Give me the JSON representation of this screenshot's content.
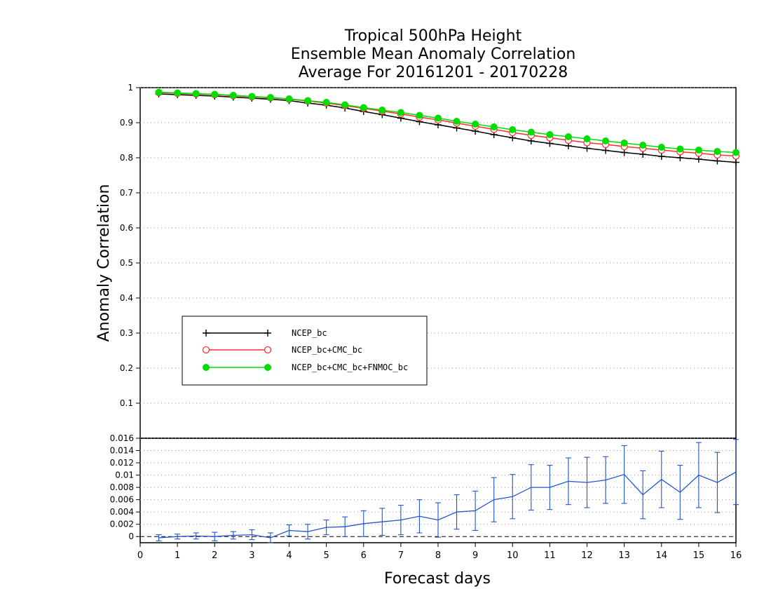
{
  "chart_data": [
    {
      "type": "line",
      "title": [
        "Tropical 500hPa Height",
        "Ensemble Mean Anomaly Correlation",
        "Average For 20161201 - 20170228"
      ],
      "xlabel": "Forecast days",
      "ylabel": "Anomaly Correlation",
      "xlim": [
        0,
        16
      ],
      "ylim": [
        0,
        1
      ],
      "yticks": [
        "0.1",
        "0.2",
        "0.3",
        "0.4",
        "0.5",
        "0.6",
        "0.7",
        "0.8",
        "0.9",
        "1"
      ],
      "grid": "dotted horizontal",
      "legend_position": "lower-left",
      "x": [
        0.5,
        1,
        1.5,
        2,
        2.5,
        3,
        3.5,
        4,
        4.5,
        5,
        5.5,
        6,
        6.5,
        7,
        7.5,
        8,
        8.5,
        9,
        9.5,
        10,
        10.5,
        11,
        11.5,
        12,
        12.5,
        13,
        13.5,
        14,
        14.5,
        15,
        15.5,
        16
      ],
      "series": [
        {
          "name": "NCEP_bc",
          "color": "#000000",
          "marker": "plus",
          "values": [
            0.982,
            0.98,
            0.978,
            0.976,
            0.973,
            0.97,
            0.967,
            0.963,
            0.956,
            0.95,
            0.942,
            0.932,
            0.923,
            0.913,
            0.903,
            0.894,
            0.885,
            0.876,
            0.866,
            0.857,
            0.848,
            0.841,
            0.834,
            0.827,
            0.821,
            0.815,
            0.81,
            0.804,
            0.8,
            0.796,
            0.791,
            0.787
          ]
        },
        {
          "name": "NCEP_bc+CMC_bc",
          "color": "#ff3030",
          "marker": "open-circle",
          "values": [
            0.986,
            0.984,
            0.982,
            0.98,
            0.977,
            0.974,
            0.971,
            0.967,
            0.962,
            0.956,
            0.949,
            0.941,
            0.933,
            0.925,
            0.916,
            0.908,
            0.899,
            0.89,
            0.881,
            0.872,
            0.864,
            0.857,
            0.85,
            0.843,
            0.838,
            0.832,
            0.827,
            0.822,
            0.817,
            0.813,
            0.808,
            0.805
          ]
        },
        {
          "name": "NCEP_bc+CMC_bc+FNMOC_bc",
          "color": "#00dd00",
          "marker": "filled-circle",
          "values": [
            0.987,
            0.985,
            0.983,
            0.981,
            0.978,
            0.975,
            0.972,
            0.968,
            0.963,
            0.958,
            0.951,
            0.943,
            0.936,
            0.929,
            0.921,
            0.913,
            0.904,
            0.896,
            0.888,
            0.88,
            0.873,
            0.866,
            0.86,
            0.854,
            0.848,
            0.842,
            0.836,
            0.83,
            0.825,
            0.822,
            0.818,
            0.815
          ]
        }
      ]
    },
    {
      "type": "line",
      "subtype": "difference with error bars",
      "xlabel": "Forecast days",
      "xlim": [
        0,
        16
      ],
      "xticks": [
        "0",
        "1",
        "2",
        "3",
        "4",
        "5",
        "6",
        "7",
        "8",
        "9",
        "10",
        "11",
        "12",
        "13",
        "14",
        "15",
        "16"
      ],
      "ylim": [
        -0.001,
        0.016
      ],
      "yticks": [
        "0",
        "0.002",
        "0.004",
        "0.006",
        "0.008",
        "0.01",
        "0.012",
        "0.014",
        "0.016"
      ],
      "color": "#2255cc",
      "x": [
        0.5,
        1,
        1.5,
        2,
        2.5,
        3,
        3.5,
        4,
        4.5,
        5,
        5.5,
        6,
        6.5,
        7,
        7.5,
        8,
        8.5,
        9,
        9.5,
        10,
        10.5,
        11,
        11.5,
        12,
        12.5,
        13,
        13.5,
        14,
        14.5,
        15,
        15.5,
        16
      ],
      "values": [
        -0.0002,
        0.0,
        0.0001,
        0.0,
        0.0002,
        0.0003,
        -0.0002,
        0.001,
        0.0008,
        0.0015,
        0.0016,
        0.0021,
        0.0024,
        0.0027,
        0.0033,
        0.0027,
        0.004,
        0.0042,
        0.006,
        0.0065,
        0.008,
        0.008,
        0.009,
        0.0088,
        0.0092,
        0.0101,
        0.0068,
        0.0093,
        0.0072,
        0.01,
        0.0088,
        0.0105
      ],
      "errors": [
        0.0005,
        0.0004,
        0.0005,
        0.0007,
        0.0006,
        0.0008,
        0.0008,
        0.0009,
        0.0012,
        0.0012,
        0.0016,
        0.0021,
        0.0022,
        0.0024,
        0.0027,
        0.0028,
        0.0028,
        0.0032,
        0.0036,
        0.0036,
        0.0037,
        0.0036,
        0.0038,
        0.0041,
        0.0038,
        0.0047,
        0.0039,
        0.0046,
        0.0044,
        0.0053,
        0.0049,
        0.0053
      ]
    }
  ]
}
